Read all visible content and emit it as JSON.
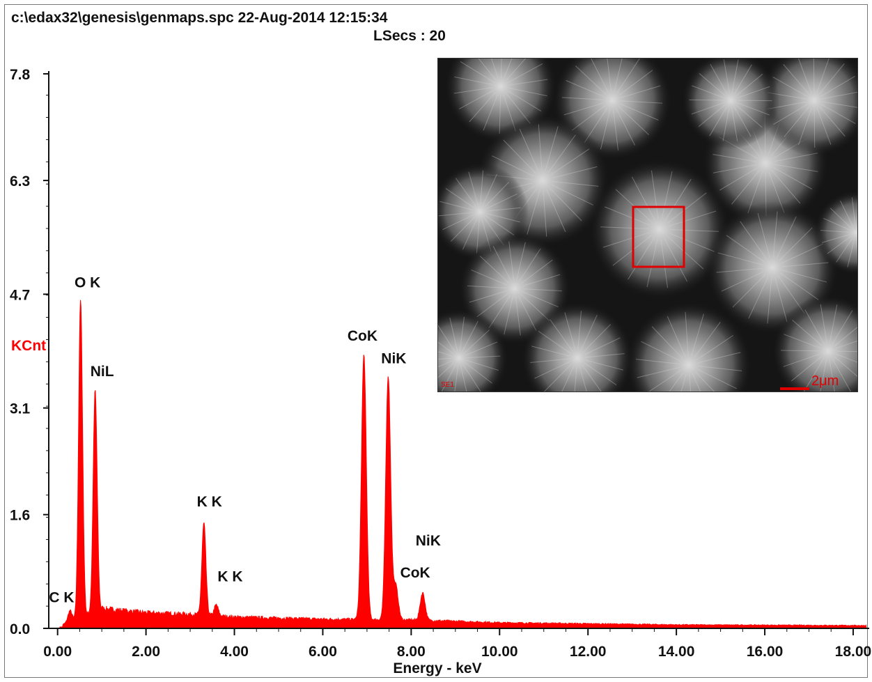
{
  "header": {
    "file_info": "c:\\edax32\\genesis\\genmaps.spc  22-Aug-2014 12:15:34",
    "lsecs": "LSecs :  20"
  },
  "chart_data": {
    "type": "bar",
    "title": "",
    "xlabel": "Energy - keV",
    "ylabel": "KCnt",
    "xlim": [
      -0.2,
      18.3
    ],
    "ylim": [
      0.0,
      7.8
    ],
    "x_ticks": [
      0.0,
      2.0,
      4.0,
      6.0,
      8.0,
      10.0,
      12.0,
      14.0,
      16.0,
      18.0
    ],
    "x_tick_labels": [
      "0.00",
      "2.00",
      "4.00",
      "6.00",
      "8.00",
      "10.00",
      "12.00",
      "14.00",
      "16.00",
      "18.00"
    ],
    "y_ticks": [
      0.0,
      1.6,
      3.1,
      4.7,
      6.3,
      7.8
    ],
    "y_tick_labels": [
      "0.0",
      "1.6",
      "3.1",
      "4.7",
      "6.3",
      "7.8"
    ],
    "bar_color": "#ff0000",
    "peaks": [
      {
        "label": "C K",
        "energy": 0.28,
        "kcnt": 0.25
      },
      {
        "label": "O K",
        "energy": 0.52,
        "kcnt": 4.62
      },
      {
        "label": "NiL",
        "energy": 0.85,
        "kcnt": 3.35
      },
      {
        "label": "K K",
        "energy": 3.31,
        "kcnt": 1.48
      },
      {
        "label": "K K",
        "energy": 3.59,
        "kcnt": 0.33
      },
      {
        "label": "CoK",
        "energy": 6.93,
        "kcnt": 3.85
      },
      {
        "label": "NiK",
        "energy": 7.48,
        "kcnt": 3.55
      },
      {
        "label": "CoK",
        "energy": 7.65,
        "kcnt": 0.6
      },
      {
        "label": "NiK",
        "energy": 8.26,
        "kcnt": 0.5
      }
    ],
    "continuum": [
      {
        "energy": 0.1,
        "kcnt": 0.05
      },
      {
        "energy": 1.0,
        "kcnt": 0.28
      },
      {
        "energy": 2.0,
        "kcnt": 0.22
      },
      {
        "energy": 3.0,
        "kcnt": 0.2
      },
      {
        "energy": 4.0,
        "kcnt": 0.16
      },
      {
        "energy": 6.0,
        "kcnt": 0.13
      },
      {
        "energy": 8.0,
        "kcnt": 0.12
      },
      {
        "energy": 10.0,
        "kcnt": 0.08
      },
      {
        "energy": 14.0,
        "kcnt": 0.05
      },
      {
        "energy": 18.3,
        "kcnt": 0.04
      }
    ]
  },
  "inset": {
    "label": "SE1",
    "scale_bar_text": "2μm"
  },
  "colors": {
    "accent": "#ff0000",
    "axis": "#111111",
    "inset_mark": "#e00000"
  }
}
